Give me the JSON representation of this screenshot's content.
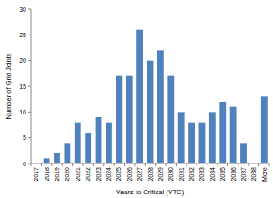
{
  "chart_data": {
    "type": "bar",
    "x_label": "Years to Critical (YTC)",
    "y_label": "Number of Grid Joints",
    "categories": [
      "2017",
      "2018",
      "2019",
      "2020",
      "2021",
      "2022",
      "2023",
      "2024",
      "2025",
      "2026",
      "2027",
      "2028",
      "2029",
      "2030",
      "2031",
      "2032",
      "2033",
      "2034",
      "2035",
      "2036",
      "2037",
      "2038",
      "More"
    ],
    "values": [
      0,
      1,
      2,
      4,
      8,
      6,
      9,
      8,
      17,
      17,
      26,
      20,
      22,
      17,
      10,
      8,
      8,
      10,
      12,
      11,
      4,
      0,
      13
    ],
    "color": "#4f81bd",
    "ylim": [
      0,
      30
    ],
    "yticks": [
      0,
      5,
      10,
      15,
      20,
      25,
      30
    ],
    "grid": false
  }
}
